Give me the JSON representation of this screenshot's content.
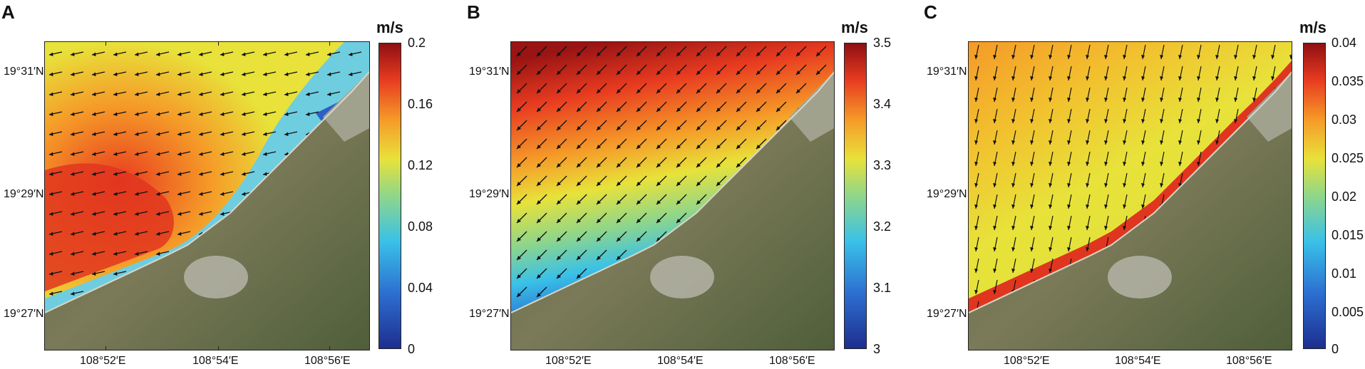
{
  "panels": [
    {
      "letter": "A",
      "unit": "m/s",
      "colorbar_ticks": [
        "0.2",
        "0.16",
        "0.12",
        "0.08",
        "0.04",
        "0"
      ],
      "lat_labels": [
        "19°31′N",
        "19°29′N",
        "19°27′N"
      ],
      "lon_labels": [
        "108°52′E",
        "108°54′E",
        "108°56′E"
      ],
      "field_description": "surface current speed, high offshore (orange-red), lower nearshore",
      "arrow_direction": "westward / south-westward"
    },
    {
      "letter": "B",
      "unit": "m/s",
      "colorbar_ticks": [
        "3.5",
        "3.4",
        "3.3",
        "3.2",
        "3.1",
        "3"
      ],
      "lat_labels": [
        "19°31′N",
        "19°29′N",
        "19°27′N"
      ],
      "lon_labels": [
        "108°52′E",
        "108°54′E",
        "108°56′E"
      ],
      "field_description": "wind speed, gradient from dark red (north) to dark blue (south)",
      "arrow_direction": "south-westward"
    },
    {
      "letter": "C",
      "unit": "m/s",
      "colorbar_ticks": [
        "0.04",
        "0.035",
        "0.03",
        "0.025",
        "0.02",
        "0.015",
        "0.01",
        "0.005",
        "0"
      ],
      "lat_labels": [
        "19°31′N",
        "19°29′N",
        "19°27′N"
      ],
      "lon_labels": [
        "108°52′E",
        "108°54′E",
        "108°56′E"
      ],
      "field_description": "residual velocity, yellow offshore, red band along coast",
      "arrow_direction": "southward"
    }
  ],
  "colors": {
    "colormap": [
      "#1d2e8f",
      "#2c6fd0",
      "#39c1e8",
      "#8fd68a",
      "#e8e23a",
      "#f59a28",
      "#e83b20",
      "#8e1012"
    ],
    "land_dark": "#4b5a3a",
    "land_light": "#8a8a66",
    "urban": "#b9b8ad",
    "frame": "#222222"
  }
}
